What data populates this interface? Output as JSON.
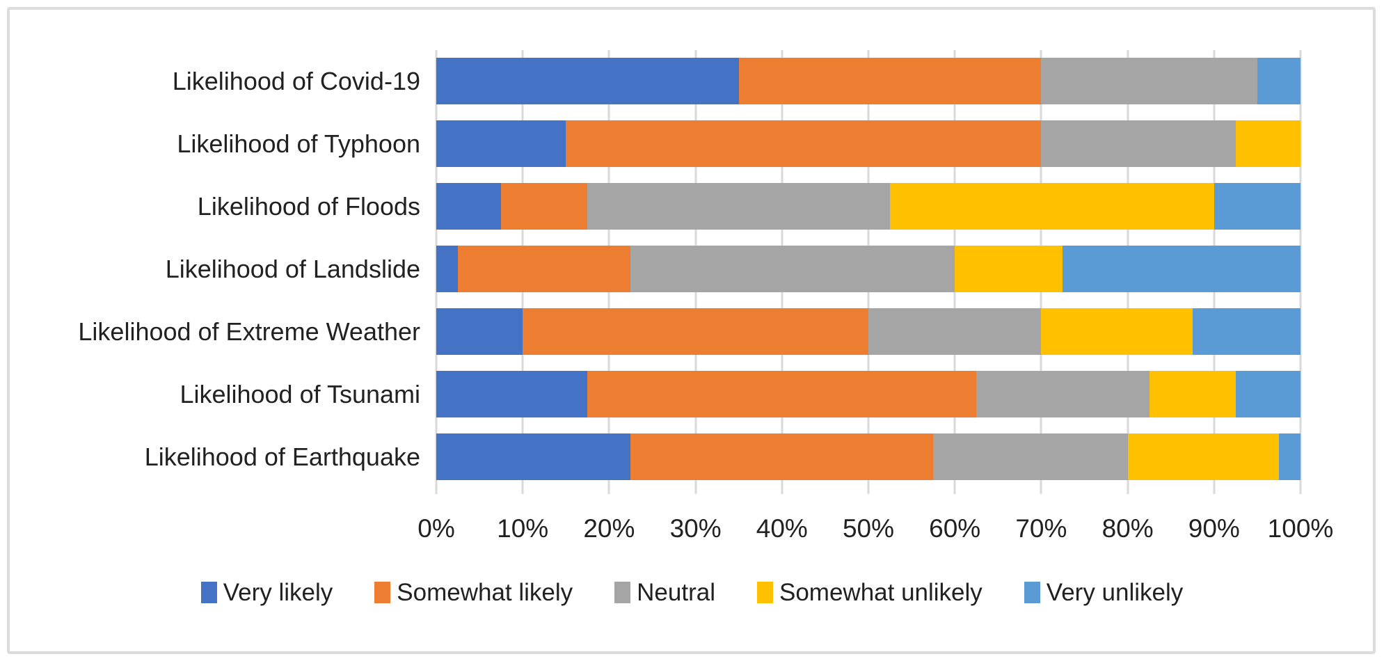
{
  "chart_data": {
    "type": "bar",
    "stacked": true,
    "orientation": "horizontal",
    "title": "",
    "xlabel": "",
    "ylabel": "",
    "categories": [
      "Likelihood of Covid-19",
      "Likelihood of Typhoon",
      "Likelihood of Floods",
      "Likelihood of Landslide",
      "Likelihood of Extreme Weather",
      "Likelihood of Tsunami",
      "Likelihood of Earthquake"
    ],
    "series": [
      {
        "name": "Very likely",
        "color": "#4472C4",
        "values": [
          35,
          15,
          7.5,
          2.5,
          10,
          17.5,
          22.5
        ]
      },
      {
        "name": "Somewhat likely",
        "color": "#ED7D31",
        "values": [
          35,
          55,
          10,
          20,
          40,
          45,
          35
        ]
      },
      {
        "name": "Neutral",
        "color": "#A5A5A5",
        "values": [
          25,
          22.5,
          35,
          37.5,
          20,
          20,
          22.5
        ]
      },
      {
        "name": "Somewhat unlikely",
        "color": "#FFC000",
        "values": [
          0,
          7.5,
          37.5,
          12.5,
          17.5,
          10,
          17.5
        ]
      },
      {
        "name": "Very unlikely",
        "color": "#5B9BD5",
        "values": [
          5,
          0,
          10,
          27.5,
          12.5,
          7.5,
          2.5
        ]
      }
    ],
    "x_axis": {
      "min": 0,
      "max": 100,
      "step": 10,
      "tick_labels": [
        "0%",
        "10%",
        "20%",
        "30%",
        "40%",
        "50%",
        "60%",
        "70%",
        "80%",
        "90%",
        "100%"
      ]
    },
    "legend_position": "bottom",
    "grid": true,
    "colors": {
      "gridline": "#D9D9D9",
      "tick": "#D9D9D9",
      "text": "#212121",
      "background": "#FFFFFF",
      "frame_border": "#DCDCDC"
    }
  }
}
